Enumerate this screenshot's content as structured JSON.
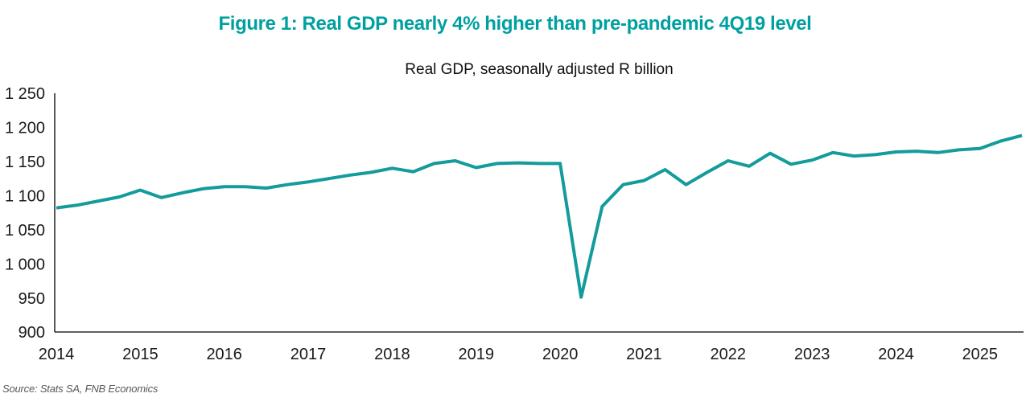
{
  "figure": {
    "title": "Figure 1: Real GDP nearly 4% higher than pre-pandemic 4Q19 level",
    "source": "Source: Stats SA, FNB Economics"
  },
  "colors": {
    "title_accent": "#00a0a0",
    "series_line": "#149b9b",
    "axis": "#000000",
    "tick_label": "#1a1a1a",
    "source_text": "#595959",
    "background": "#ffffff"
  },
  "chart_data": {
    "type": "line",
    "title": "Real GDP, seasonally adjusted R billion",
    "xlabel": "",
    "ylabel": "",
    "unit": "R billion, seasonally adjusted, quarterly",
    "grid": false,
    "legend_position": "none",
    "ylim": [
      900,
      1250
    ],
    "yticks": [
      900,
      950,
      1000,
      1050,
      1100,
      1150,
      1200,
      1250
    ],
    "ytick_labels": [
      "900",
      "950",
      "1 000",
      "1 050",
      "1 100",
      "1 150",
      "1 200",
      "1 250"
    ],
    "x_year_labels": [
      "2014",
      "2015",
      "2016",
      "2017",
      "2018",
      "2019",
      "2020",
      "2021",
      "2022",
      "2023",
      "2024",
      "2025"
    ],
    "x": [
      "2014Q1",
      "2014Q2",
      "2014Q3",
      "2014Q4",
      "2015Q1",
      "2015Q2",
      "2015Q3",
      "2015Q4",
      "2016Q1",
      "2016Q2",
      "2016Q3",
      "2016Q4",
      "2017Q1",
      "2017Q2",
      "2017Q3",
      "2017Q4",
      "2018Q1",
      "2018Q2",
      "2018Q3",
      "2018Q4",
      "2019Q1",
      "2019Q2",
      "2019Q3",
      "2019Q4",
      "2020Q1",
      "2020Q2",
      "2020Q3",
      "2020Q4",
      "2021Q1",
      "2021Q2",
      "2021Q3",
      "2021Q4",
      "2022Q1",
      "2022Q2",
      "2022Q3",
      "2022Q4",
      "2023Q1",
      "2023Q2",
      "2023Q3",
      "2023Q4",
      "2024Q1",
      "2024Q2",
      "2024Q3",
      "2024Q4",
      "2025Q1",
      "2025Q2",
      "2025Q3"
    ],
    "values": [
      1082,
      1086,
      1092,
      1098,
      1108,
      1097,
      1104,
      1110,
      1113,
      1113,
      1111,
      1116,
      1120,
      1125,
      1130,
      1134,
      1140,
      1135,
      1147,
      1151,
      1141,
      1147,
      1148,
      1147,
      1147,
      951,
      1084,
      1116,
      1122,
      1138,
      1116,
      1134,
      1151,
      1143,
      1162,
      1146,
      1152,
      1163,
      1158,
      1160,
      1164,
      1165,
      1163,
      1167,
      1169,
      1180,
      1188
    ]
  }
}
